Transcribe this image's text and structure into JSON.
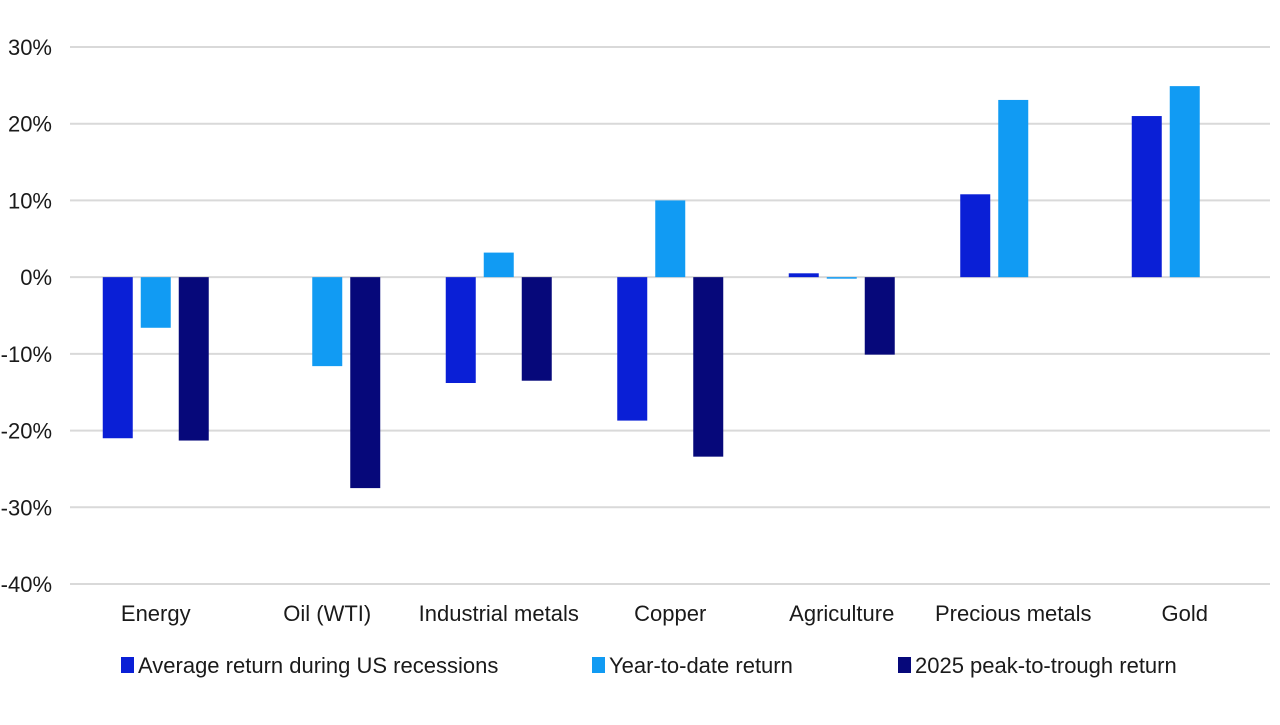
{
  "chart_data": {
    "type": "bar",
    "title": "",
    "xlabel": "",
    "ylabel": "",
    "ylim": [
      -40,
      30
    ],
    "yticks": [
      30,
      20,
      10,
      0,
      -10,
      -20,
      -30,
      -40
    ],
    "ytick_labels": [
      "30%",
      "20%",
      "10%",
      "0%",
      "-10%",
      "-20%",
      "-30%",
      "-40%"
    ],
    "grid": true,
    "legend_position": "bottom",
    "categories": [
      "Energy",
      "Oil (WTI)",
      "Industrial metals",
      "Copper",
      "Agriculture",
      "Precious metals",
      "Gold"
    ],
    "series": [
      {
        "name": "Average return during US recessions",
        "color": "#0a1fd6",
        "values": [
          -21.0,
          null,
          -13.8,
          -18.7,
          0.5,
          10.8,
          21.0
        ]
      },
      {
        "name": "Year-to-date return",
        "color": "#119bf3",
        "values": [
          -6.6,
          -11.6,
          3.2,
          10.0,
          -0.2,
          23.1,
          24.9
        ]
      },
      {
        "name": "2025 peak-to-trough return",
        "color": "#06087a",
        "values": [
          -21.3,
          -27.5,
          -13.5,
          -23.4,
          -10.1,
          null,
          null
        ]
      }
    ]
  }
}
